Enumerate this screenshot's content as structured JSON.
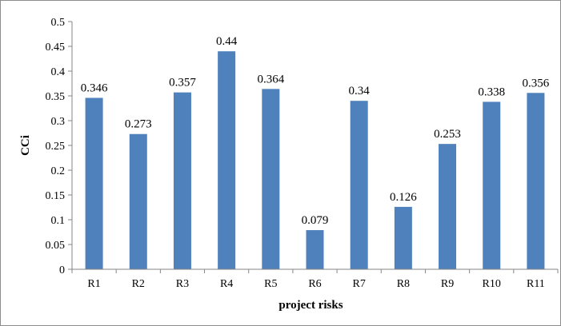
{
  "chart_data": {
    "type": "bar",
    "title": "",
    "xlabel": "project risks",
    "ylabel": "CCi",
    "categories": [
      "R1",
      "R2",
      "R3",
      "R4",
      "R5",
      "R6",
      "R7",
      "R8",
      "R9",
      "R10",
      "R11"
    ],
    "values": [
      0.346,
      0.273,
      0.357,
      0.44,
      0.364,
      0.079,
      0.34,
      0.126,
      0.253,
      0.338,
      0.356
    ],
    "value_labels": [
      "0.346",
      "0.273",
      "0.357",
      "0.44",
      "0.364",
      "0.079",
      "0.34",
      "0.126",
      "0.253",
      "0.338",
      "0.356"
    ],
    "ylim": [
      0,
      0.5
    ],
    "yticks": [
      0,
      0.05,
      0.1,
      0.15,
      0.2,
      0.25,
      0.3,
      0.35,
      0.4,
      0.45,
      0.5
    ],
    "ytick_labels": [
      "0",
      "0.05",
      "0.1",
      "0.15",
      "0.2",
      "0.25",
      "0.3",
      "0.35",
      "0.4",
      "0.45",
      "0.5"
    ],
    "grid": false,
    "legend": "none",
    "colors": {
      "bar": "#4f81bd",
      "axis": "#868686"
    }
  }
}
